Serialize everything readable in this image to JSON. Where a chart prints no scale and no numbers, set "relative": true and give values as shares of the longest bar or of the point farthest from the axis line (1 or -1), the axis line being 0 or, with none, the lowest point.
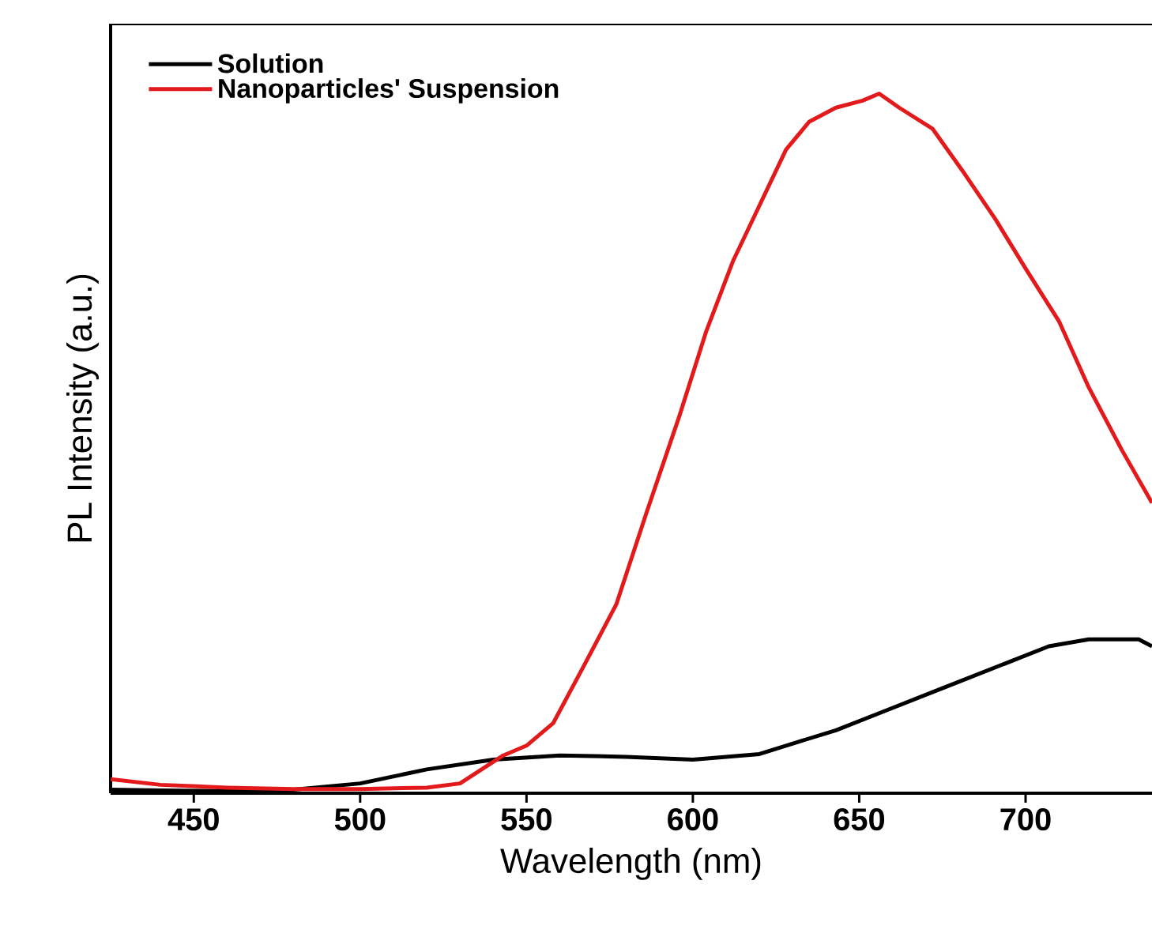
{
  "chart_data": {
    "type": "line",
    "xlabel": "Wavelength (nm)",
    "ylabel": "PL Intensity (a.u.)",
    "relative": true,
    "xlim": [
      425,
      738
    ],
    "xticks": [
      450,
      500,
      550,
      600,
      650,
      700
    ],
    "legend": "top left",
    "grid": false,
    "marker": "none",
    "line_style": "solid",
    "series": [
      {
        "name": "Solution",
        "color": "#000000",
        "x": [
          425,
          440,
          460,
          480,
          500,
          520,
          540,
          560,
          580,
          600,
          620,
          628,
          643,
          659,
          675,
          691,
          707,
          719,
          734,
          738
        ],
        "values": [
          0.005,
          0.004,
          0.003,
          0.005,
          0.014,
          0.034,
          0.048,
          0.054,
          0.052,
          0.048,
          0.056,
          0.068,
          0.09,
          0.12,
          0.15,
          0.18,
          0.21,
          0.22,
          0.22,
          0.21
        ]
      },
      {
        "name": "Nanoparticles' Suspension",
        "color": "#e31a1c",
        "x": [
          425,
          440,
          460,
          480,
          500,
          520,
          530,
          543,
          550,
          558,
          567,
          577,
          586,
          596,
          604,
          612,
          620,
          628,
          635,
          643,
          651,
          656,
          662,
          672,
          681,
          691,
          700,
          710,
          719,
          729,
          738
        ],
        "values": [
          0.02,
          0.012,
          0.008,
          0.006,
          0.006,
          0.008,
          0.014,
          0.054,
          0.068,
          0.1,
          0.18,
          0.27,
          0.4,
          0.54,
          0.66,
          0.76,
          0.84,
          0.92,
          0.96,
          0.98,
          0.99,
          1.0,
          0.98,
          0.95,
          0.89,
          0.82,
          0.75,
          0.675,
          0.58,
          0.49,
          0.415
        ]
      }
    ]
  }
}
